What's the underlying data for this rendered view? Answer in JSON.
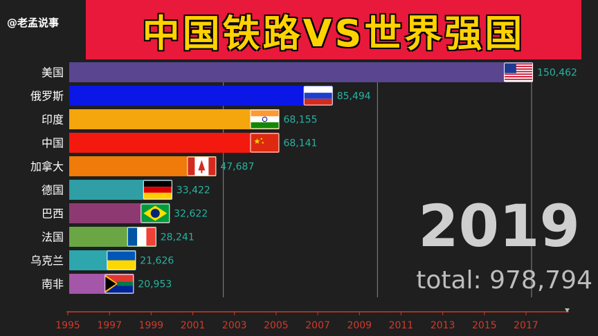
{
  "handle": "@老孟说事",
  "title": "中国铁路VS世界强国",
  "year": "2019",
  "total_label": "total: 978,794",
  "chart_data": {
    "type": "bar",
    "orientation": "horizontal",
    "categories": [
      "美国",
      "俄罗斯",
      "印度",
      "中国",
      "加拿大",
      "德国",
      "巴西",
      "法国",
      "乌克兰",
      "南非"
    ],
    "values": [
      150462,
      85494,
      68155,
      68141,
      47687,
      33422,
      32622,
      28241,
      21626,
      20953
    ],
    "value_labels": [
      "150,462",
      "85,494",
      "68,155",
      "68,141",
      "47,687",
      "33,422",
      "32,622",
      "28,241",
      "21,626",
      "20,953"
    ],
    "colors": [
      "#5a4590",
      "#0a17e6",
      "#f5a60c",
      "#f4190f",
      "#f07a0a",
      "#2f9ea5",
      "#8e3a72",
      "#6ba644",
      "#2da6ad",
      "#a456a8"
    ],
    "flags": [
      "us-flag",
      "russia-flag",
      "india-flag",
      "china-flag",
      "canada-flag",
      "germany-flag",
      "brazil-flag",
      "france-flag",
      "ukraine-flag",
      "south-africa-flag"
    ],
    "x_tick_labels": [
      "1995",
      "1997",
      "1999",
      "2001",
      "2003",
      "2005",
      "2007",
      "2009",
      "2011",
      "2013",
      "2015",
      "2017"
    ],
    "grid_x_values": [
      50000,
      100000,
      150000
    ],
    "value_label_color": "#27b3a0",
    "axis_color": "#d23a2a"
  }
}
